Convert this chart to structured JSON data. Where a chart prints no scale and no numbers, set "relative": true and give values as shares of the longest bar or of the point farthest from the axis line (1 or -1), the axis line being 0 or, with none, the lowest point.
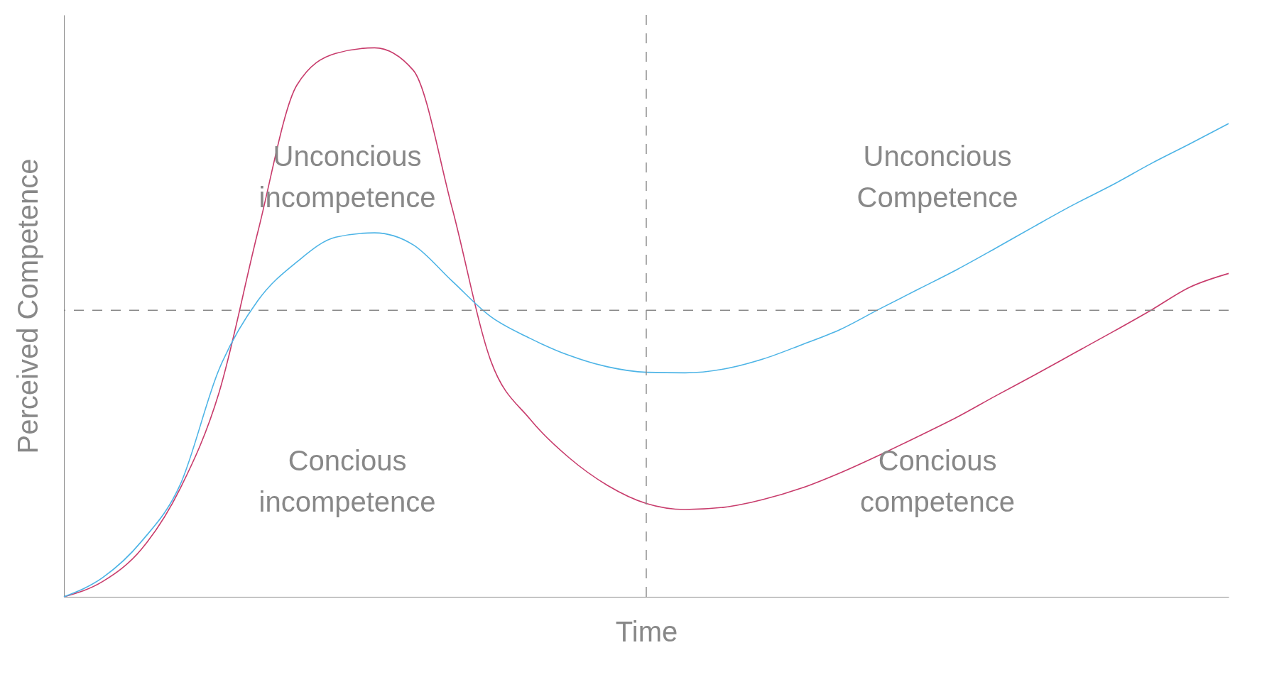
{
  "chart_data": {
    "type": "line",
    "relative": true,
    "xlabel": "Time",
    "ylabel": "Perceived Competence",
    "legend": false,
    "marker": "none",
    "line_style": "solid",
    "categories": [
      null,
      null,
      null,
      null,
      null,
      null,
      null,
      null,
      null,
      null,
      null,
      null,
      null,
      null,
      null,
      null,
      null,
      null,
      null,
      null,
      null,
      null,
      null,
      null,
      null,
      null,
      null,
      null,
      null,
      null,
      null
    ],
    "series": [
      {
        "color": "#c83c6c",
        "values": [
          0,
          0.028,
          0.087,
          0.198,
          0.373,
          0.666,
          0.932,
          0.99,
          1,
          0.959,
          0.708,
          0.429,
          0.324,
          0.254,
          0.203,
          0.17,
          0.159,
          0.163,
          0.177,
          0.198,
          0.226,
          0.258,
          0.292,
          0.327,
          0.366,
          0.404,
          0.443,
          0.482,
          0.522,
          0.564,
          0.589
        ]
      },
      {
        "color": "#4db4e6",
        "values": [
          0,
          0.035,
          0.101,
          0.205,
          0.415,
          0.54,
          0.61,
          0.655,
          0.663,
          0.641,
          0.575,
          0.51,
          0.471,
          0.44,
          0.419,
          0.409,
          0.408,
          0.415,
          0.433,
          0.459,
          0.487,
          0.524,
          0.56,
          0.596,
          0.635,
          0.675,
          0.714,
          0.75,
          0.789,
          0.825,
          0.862
        ]
      }
    ],
    "ref_lines": [
      {
        "axis": "y",
        "value": 0.522,
        "color": "#888888",
        "line_style": "dashed"
      }
    ],
    "annotations": [
      "Unconcious\nincompetence",
      "Unconcious\nCompetence",
      "Concious\nincompetence",
      "Concious\ncompetence"
    ]
  }
}
